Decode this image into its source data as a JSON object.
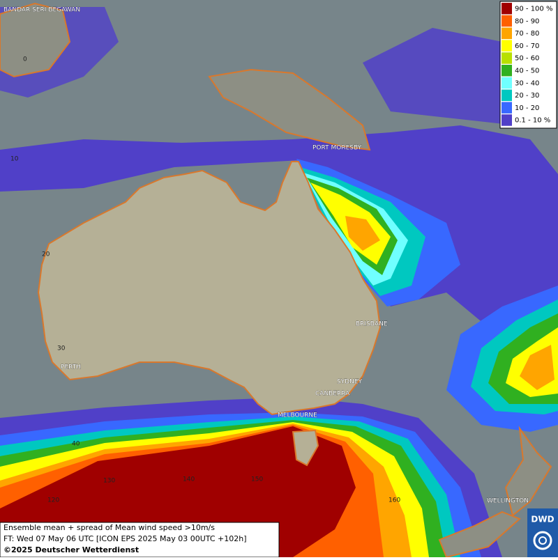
{
  "legend": {
    "items": [
      {
        "label": "90 - 100 %",
        "color": "#a00000"
      },
      {
        "label": "80 - 90",
        "color": "#ff6000"
      },
      {
        "label": "70 - 80",
        "color": "#ffa500"
      },
      {
        "label": "60 - 70",
        "color": "#ffff00"
      },
      {
        "label": "50 - 60",
        "color": "#b8e000"
      },
      {
        "label": "40 - 50",
        "color": "#30b020"
      },
      {
        "label": "30 - 40",
        "color": "#70ffff"
      },
      {
        "label": "20 - 30",
        "color": "#00c8c0"
      },
      {
        "label": "10 - 20",
        "color": "#3868ff"
      },
      {
        "label": "0.1 - 10 %",
        "color": "#5040c8"
      }
    ]
  },
  "cities": [
    "BANDAR SERI BEGAWAN",
    "PORT MORESBY",
    "BRISBANE",
    "SYDNEY",
    "CANBERRA",
    "MELBOURNE",
    "PERTH",
    "WELLINGTON"
  ],
  "graticule_labels": [
    "0",
    "10",
    "20",
    "30",
    "40",
    "120",
    "130",
    "140",
    "150",
    "160"
  ],
  "caption": {
    "line1": "Ensemble mean + spread of Mean wind speed >10m/s",
    "line2": "FT: Wed 07 May 06 UTC [ICON EPS 2025 May 03 00UTC +102h]",
    "line3": "©2025 Deutscher Wetterdienst"
  },
  "logo": "DWD"
}
